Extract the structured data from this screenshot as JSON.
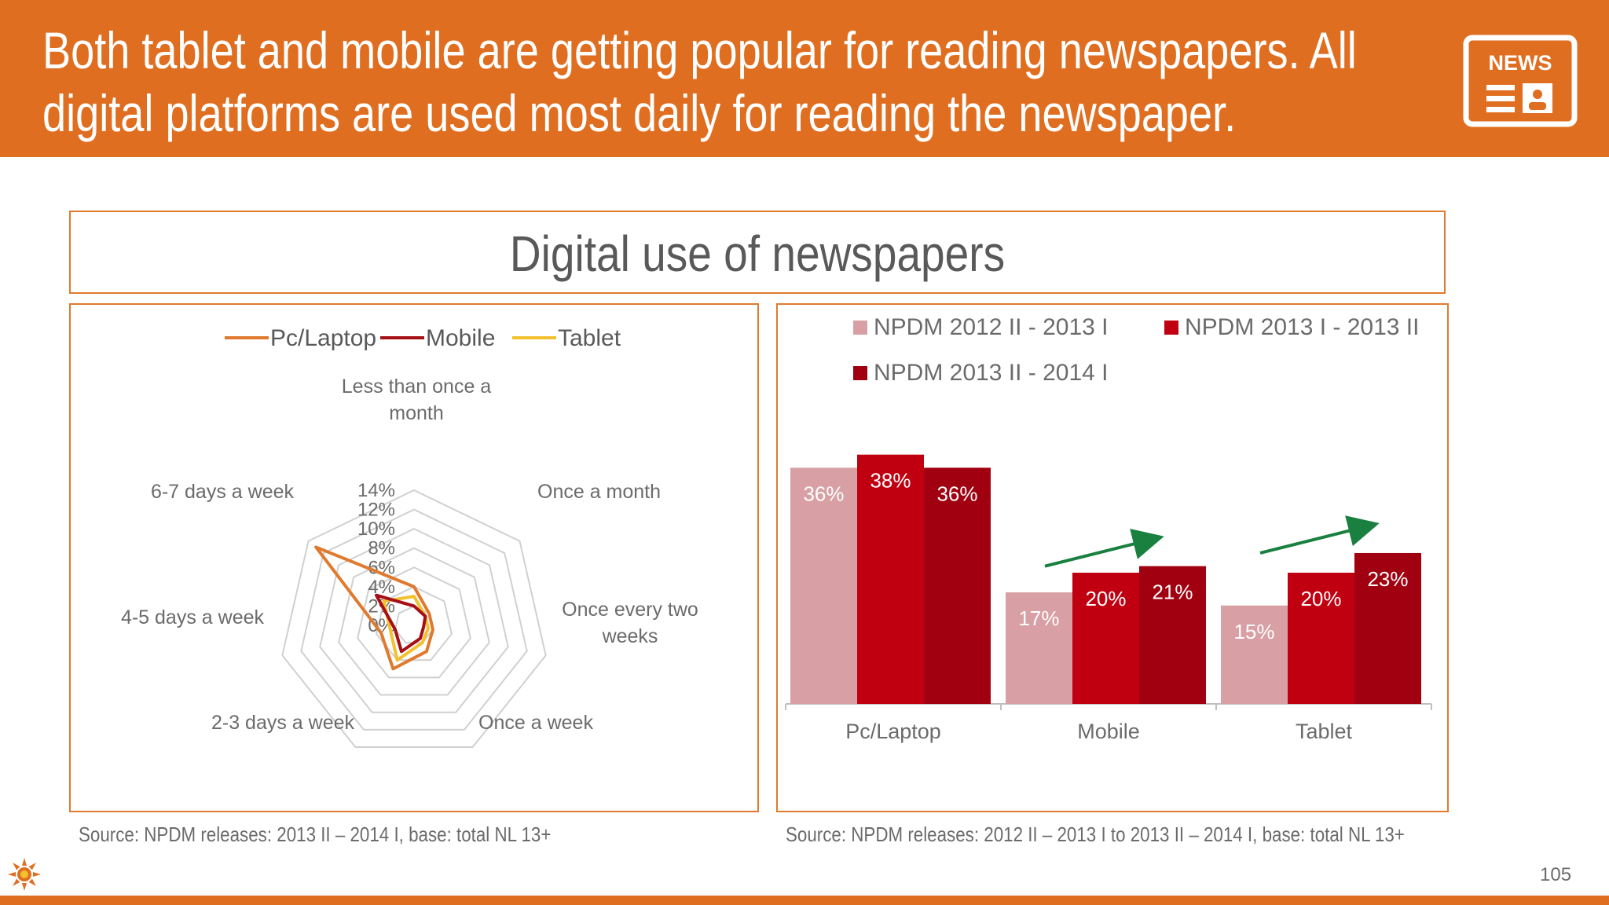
{
  "header": {
    "title": "Both tablet and mobile are getting popular for reading newspapers. All digital platforms are used most daily for reading the newspaper.",
    "title_line1": "Both tablet and mobile are getting popular for reading newspapers. All",
    "title_line2": "digital platforms are used most daily for reading the newspaper.",
    "icon_label": "NEWS",
    "icon": "newspaper-icon"
  },
  "main": {
    "chart_title": "Digital use of newspapers",
    "source_left": "Source: NPDM releases: 2013 II – 2014 I, base: total NL 13+",
    "source_right": "Source: NPDM releases: 2012 II – 2013 I to 2013 II – 2014 I, base: total NL 13+"
  },
  "footer": {
    "page_number": "105",
    "logo_icon": "sun-logo-icon"
  },
  "colors": {
    "header": "#e06e20",
    "border": "#e07a2e",
    "pc_laptop": "#e07a2e",
    "mobile": "#a50f15",
    "tablet": "#f2c12e",
    "bar_2012": "#d8a0a4",
    "bar_2013": "#c00010",
    "bar_2014": "#a00010",
    "arrow": "#1a8040"
  },
  "chart_data": [
    {
      "type": "radar",
      "categories": [
        "Less than once a month",
        "Once a month",
        "Once every two weeks",
        "Once a week",
        "2-3 days a week",
        "4-5 days a week",
        "6-7 days a week"
      ],
      "axis_ticks": [
        "0%",
        "2%",
        "4%",
        "6%",
        "8%",
        "10%",
        "12%",
        "14%"
      ],
      "rmax": 14,
      "legend_position": "top",
      "series": [
        {
          "name": "Pc/Laptop",
          "color": "#e07a2e",
          "values": [
            4,
            2,
            2,
            3,
            5,
            3.5,
            13
          ]
        },
        {
          "name": "Mobile",
          "color": "#a50f15",
          "values": [
            2,
            1.5,
            1,
            1.5,
            3,
            2,
            5
          ]
        },
        {
          "name": "Tablet",
          "color": "#f2c12e",
          "values": [
            3,
            1.5,
            1.5,
            2,
            4,
            2.5,
            4
          ]
        }
      ]
    },
    {
      "type": "bar",
      "categories": [
        "Pc/Laptop",
        "Mobile",
        "Tablet"
      ],
      "ylim": [
        0,
        50
      ],
      "legend_position": "top",
      "series": [
        {
          "name": "NPDM 2012 II - 2013 I",
          "color": "#d8a0a4",
          "values": [
            36,
            17,
            15
          ],
          "labels": [
            "36%",
            "17%",
            "15%"
          ]
        },
        {
          "name": "NPDM 2013 I - 2013 II",
          "color": "#c00010",
          "values": [
            38,
            20,
            20
          ],
          "labels": [
            "38%",
            "20%",
            "20%"
          ]
        },
        {
          "name": "NPDM 2013 II - 2014 I",
          "color": "#a00010",
          "values": [
            36,
            21,
            23
          ],
          "labels": [
            "36%",
            "21%",
            "23%"
          ]
        }
      ],
      "annotations": [
        {
          "type": "trend-arrow",
          "category": "Mobile",
          "color": "#1a8040"
        },
        {
          "type": "trend-arrow",
          "category": "Tablet",
          "color": "#1a8040"
        }
      ]
    }
  ]
}
